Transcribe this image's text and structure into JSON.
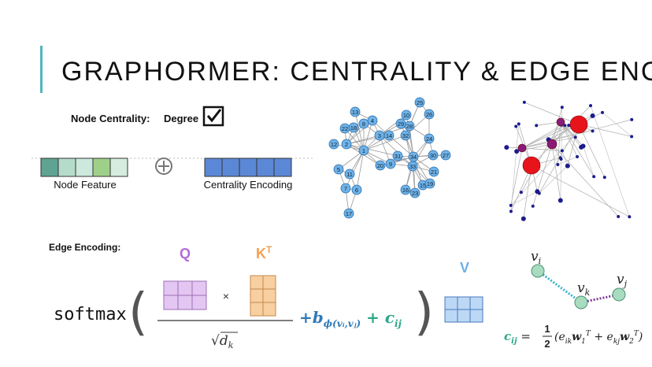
{
  "header": {
    "title": "GRAPHORMER: CENTRALITY & EDGE ENCODINGS"
  },
  "centrality": {
    "label": "Node Centrality:",
    "option": "Degree",
    "node_feature": "Node Feature",
    "centrality_encoding": "Centrality Encoding"
  },
  "graph": {
    "nodes": [
      "1",
      "2",
      "3",
      "4",
      "5",
      "6",
      "7",
      "8",
      "9",
      "10",
      "11",
      "12",
      "13",
      "14",
      "15",
      "16",
      "17",
      "18",
      "19",
      "20",
      "21",
      "22",
      "23",
      "24",
      "25",
      "26",
      "27",
      "28",
      "29",
      "30",
      "31",
      "32",
      "33",
      "34"
    ]
  },
  "edge_encoding": {
    "label": "Edge Encoding:",
    "q": "Q",
    "k": "K",
    "k_sup": "T",
    "times": "×",
    "v": "V",
    "softmax": "softmax",
    "sqrt": "√",
    "d": "d",
    "d_sub": "k",
    "bias": "+b",
    "bias_sub": "ϕ(vᵢ,vⱼ)",
    "plus": " + ",
    "c": "c",
    "c_sub": "ij"
  },
  "path": {
    "nodes": [
      {
        "label": "v",
        "sub": "i"
      },
      {
        "label": "v",
        "sub": "k"
      },
      {
        "label": "v",
        "sub": "j"
      }
    ],
    "formula": {
      "c": "c",
      "c_sub": "ij",
      "eq": " = ",
      "num": "1",
      "den": "2",
      "open": "(e",
      "e1_sub": "ik",
      "w1": "w",
      "w1_sub": "1",
      "w1_sup": "T",
      "mid": " + e",
      "e2_sub": "kj",
      "w2": "w",
      "w2_sub": "2",
      "w2_sup": "T",
      "close": ")"
    }
  }
}
